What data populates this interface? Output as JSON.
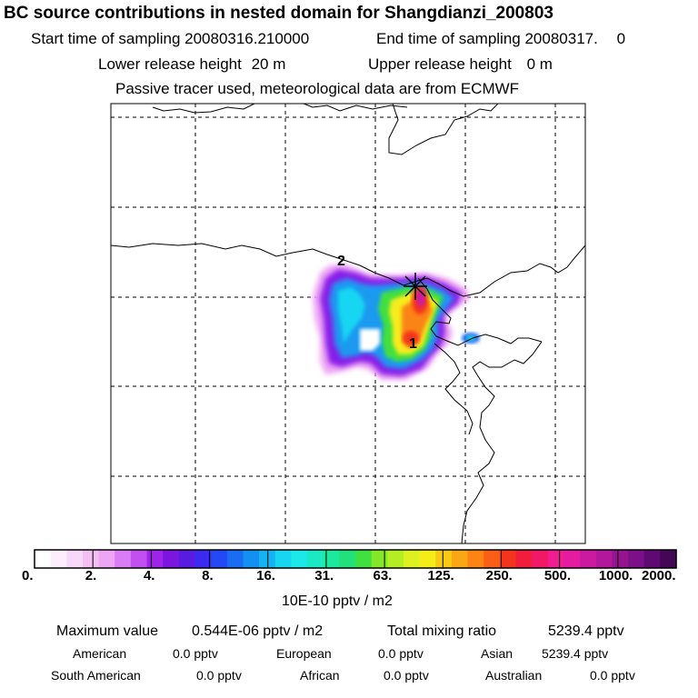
{
  "title": "BC  source contributions in nested domain for Shangdianzi_200803",
  "header": {
    "start_label": "Start time of sampling 20080316.210000",
    "end_label": "End time of sampling 20080317.",
    "end_value": "0",
    "lower_label": "Lower release height",
    "lower_value": "20 m",
    "upper_label": "Upper release height",
    "upper_value": "0 m",
    "tracer_note": "Passive tracer used, meteorological data are from ECMWF"
  },
  "map": {
    "markers": [
      "1",
      "2"
    ]
  },
  "colorbar": {
    "ticks": [
      "0.",
      "2.",
      "4.",
      "8.",
      "16.",
      "31.",
      "63.",
      "125.",
      "250.",
      "500.",
      "1000.",
      "2000."
    ],
    "units": "10E-10 pptv / m2",
    "colors": [
      "#ffffff",
      "#fdeefd",
      "#f8d8f8",
      "#f3bff3",
      "#eea6f4",
      "#d97cf5",
      "#c24ff0",
      "#a023e8",
      "#7a16e0",
      "#5a1be0",
      "#3b2af0",
      "#2448f5",
      "#1a6cf3",
      "#1490f0",
      "#14b4f0",
      "#18d6f2",
      "#1de8e8",
      "#1de8c4",
      "#1ee89e",
      "#22e07a",
      "#40e040",
      "#86e62a",
      "#b4ee22",
      "#dcf022",
      "#f5ec1a",
      "#f8ca14",
      "#fba614",
      "#fb8414",
      "#fb5e16",
      "#f5341e",
      "#f01e3c",
      "#f21868",
      "#f01c92",
      "#e41ca2",
      "#cc1aa0",
      "#b2189c",
      "#961490",
      "#7c1088",
      "#5e0a72",
      "#440656"
    ]
  },
  "stats": {
    "max_label": "Maximum value",
    "max_value": "0.544E-06 pptv / m2",
    "total_label": "Total mixing ratio",
    "total_value": "5239.4 pptv",
    "regions": [
      {
        "name": "American",
        "value": "0.0 pptv"
      },
      {
        "name": "European",
        "value": "0.0 pptv"
      },
      {
        "name": "Asian",
        "value": "5239.4 pptv"
      },
      {
        "name": "South American",
        "value": "0.0 pptv"
      },
      {
        "name": "African",
        "value": "0.0 pptv"
      },
      {
        "name": "Australian",
        "value": "0.0 pptv"
      }
    ]
  }
}
